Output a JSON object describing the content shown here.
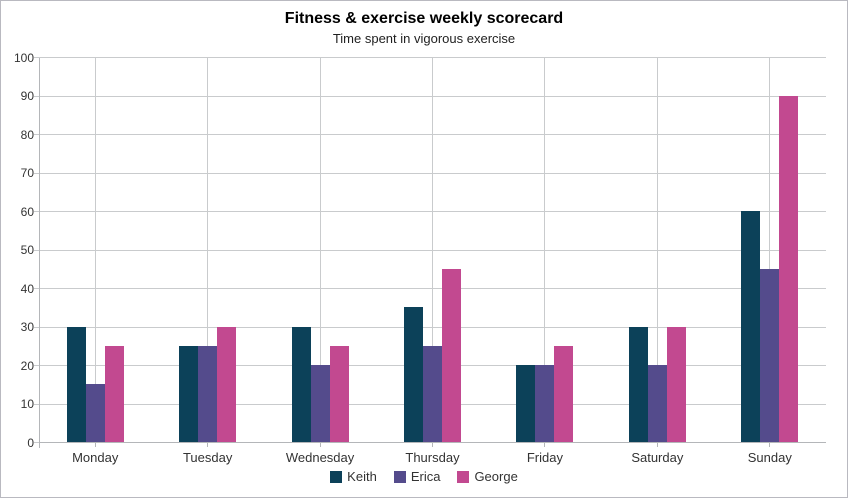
{
  "chart_data": {
    "type": "bar",
    "title": "Fitness & exercise weekly scorecard",
    "subtitle": "Time spent in vigorous exercise",
    "categories": [
      "Monday",
      "Tuesday",
      "Wednesday",
      "Thursday",
      "Friday",
      "Saturday",
      "Sunday"
    ],
    "series": [
      {
        "name": "Keith",
        "color": "#0c4159",
        "values": [
          30,
          25,
          30,
          35,
          20,
          30,
          60
        ]
      },
      {
        "name": "Erica",
        "color": "#544b8c",
        "values": [
          15,
          25,
          20,
          25,
          20,
          20,
          45
        ]
      },
      {
        "name": "George",
        "color": "#c24990",
        "values": [
          25,
          30,
          25,
          45,
          25,
          30,
          90
        ]
      }
    ],
    "xlabel": "",
    "ylabel": "",
    "ylim": [
      0,
      100
    ],
    "ytick_step": 10,
    "grid": true,
    "legend_position": "bottom",
    "style": {
      "grid_color": "#c9cbcd",
      "axis_color": "#b4b6b9",
      "text_color": "#333333",
      "background": "#ffffff",
      "border_color": "#b9b9c0"
    }
  }
}
